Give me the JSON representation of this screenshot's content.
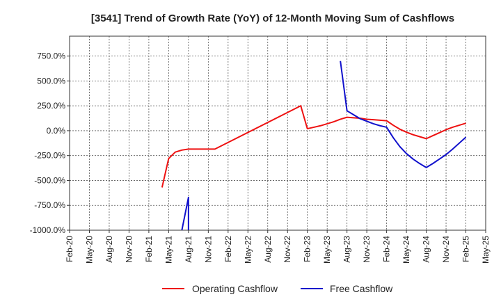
{
  "chart_data": {
    "type": "line",
    "title": "[3541]  Trend of Growth Rate (YoY) of 12-Month Moving Sum of Cashflows",
    "xlabel": "",
    "ylabel": "",
    "x_ticks": [
      "Feb-20",
      "May-20",
      "Aug-20",
      "Nov-20",
      "Feb-21",
      "May-21",
      "Aug-21",
      "Nov-21",
      "Feb-22",
      "May-22",
      "Aug-22",
      "Nov-22",
      "Feb-23",
      "May-23",
      "Aug-23",
      "Nov-23",
      "Feb-24",
      "May-24",
      "Aug-24",
      "Nov-24",
      "Feb-25",
      "May-25"
    ],
    "y_ticks": [
      "750.0%",
      "500.0%",
      "250.0%",
      "0.0%",
      "-250.0%",
      "-500.0%",
      "-750.0%",
      "-1000.0%"
    ],
    "ylim": [
      -1000,
      950
    ],
    "grid": true,
    "legend_position": "bottom",
    "series": [
      {
        "name": "Operating Cashflow",
        "color": "#ee1111",
        "points": [
          [
            "Apr-21",
            -570
          ],
          [
            "May-21",
            -280
          ],
          [
            "Jun-21",
            -215
          ],
          [
            "Jul-21",
            -195
          ],
          [
            "Aug-21",
            -185
          ],
          [
            "Sep-21",
            -185
          ],
          [
            "Oct-21",
            -185
          ],
          [
            "Nov-21",
            -185
          ],
          [
            "Dec-21",
            -185
          ],
          [
            "Jan-23",
            250
          ],
          [
            "Feb-23",
            20
          ],
          [
            "Mar-23",
            35
          ],
          [
            "Apr-23",
            50
          ],
          [
            "May-23",
            70
          ],
          [
            "Jun-23",
            90
          ],
          [
            "Jul-23",
            115
          ],
          [
            "Aug-23",
            135
          ],
          [
            "Sep-23",
            130
          ],
          [
            "Oct-23",
            125
          ],
          [
            "Nov-23",
            115
          ],
          [
            "Dec-23",
            110
          ],
          [
            "Jan-24",
            105
          ],
          [
            "Feb-24",
            100
          ],
          [
            "Mar-24",
            55
          ],
          [
            "Apr-24",
            15
          ],
          [
            "May-24",
            -15
          ],
          [
            "Jun-24",
            -40
          ],
          [
            "Jul-24",
            -60
          ],
          [
            "Aug-24",
            -80
          ],
          [
            "Sep-24",
            -50
          ],
          [
            "Oct-24",
            -20
          ],
          [
            "Nov-24",
            10
          ],
          [
            "Dec-24",
            35
          ],
          [
            "Jan-25",
            55
          ],
          [
            "Feb-25",
            75
          ]
        ]
      },
      {
        "name": "Free Cashflow",
        "color": "#1111cc",
        "points": [
          [
            "Jul-21",
            -1000
          ],
          [
            "Aug-21",
            -670
          ],
          [
            "Aug-21",
            -1000
          ]
        ],
        "points2": [
          [
            "Jul-23",
            700
          ],
          [
            "Aug-23",
            200
          ],
          [
            "Sep-23",
            160
          ],
          [
            "Oct-23",
            120
          ],
          [
            "Nov-23",
            95
          ],
          [
            "Dec-23",
            70
          ],
          [
            "Jan-24",
            50
          ],
          [
            "Feb-24",
            35
          ],
          [
            "Mar-24",
            -70
          ],
          [
            "Apr-24",
            -160
          ],
          [
            "May-24",
            -230
          ],
          [
            "Jun-24",
            -285
          ],
          [
            "Jul-24",
            -330
          ],
          [
            "Aug-24",
            -370
          ],
          [
            "Sep-24",
            -330
          ],
          [
            "Oct-24",
            -285
          ],
          [
            "Nov-24",
            -240
          ],
          [
            "Dec-24",
            -185
          ],
          [
            "Jan-25",
            -125
          ],
          [
            "Feb-25",
            -65
          ]
        ]
      }
    ]
  }
}
